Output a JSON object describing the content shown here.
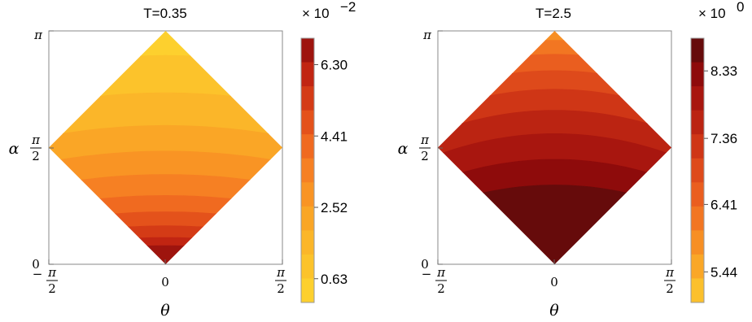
{
  "chart_data": [
    {
      "type": "contour",
      "title": "T=0.35",
      "xlabel": "θ",
      "ylabel": "α",
      "x_ticks": [
        "−π/2",
        "0",
        "π/2"
      ],
      "y_ticks": [
        "0",
        "π/2",
        "π"
      ],
      "xlim": [
        "-pi/2",
        "pi/2"
      ],
      "ylim": [
        "0",
        "pi"
      ],
      "colorbar": {
        "multiplier": "× 10",
        "exponent": "−2",
        "tick_labels": [
          "0.63",
          "2.52",
          "4.41",
          "6.30"
        ],
        "tick_values": [
          0.63,
          2.52,
          4.41,
          6.3
        ],
        "range": [
          0,
          7.0
        ],
        "levels": 11
      },
      "band_colors": [
        "#fdd02e",
        "#fcc32b",
        "#fbb629",
        "#faa626",
        "#f99424",
        "#f68023",
        "#f06a20",
        "#e4521b",
        "#d43b16",
        "#c12512",
        "#9e140e"
      ],
      "band_boundaries_alpha_frac": [
        0.85,
        0.69,
        0.55,
        0.44,
        0.34,
        0.25,
        0.18,
        0.12,
        0.07,
        0.035
      ],
      "band_curvature": 0.045
    },
    {
      "type": "contour",
      "title": "T=2.5",
      "xlabel": "θ",
      "ylabel": "α",
      "x_ticks": [
        "−π/2",
        "0",
        "π/2"
      ],
      "y_ticks": [
        "0",
        "π/2",
        "π"
      ],
      "xlim": [
        "-pi/2",
        "pi/2"
      ],
      "ylim": [
        "0",
        "pi"
      ],
      "colorbar": {
        "multiplier": "× 10",
        "exponent": "0",
        "tick_labels": [
          "5.44",
          "6.41",
          "7.36",
          "8.33"
        ],
        "tick_values": [
          5.44,
          6.41,
          7.36,
          8.33
        ],
        "range": [
          5.0,
          8.8
        ],
        "levels": 11
      },
      "band_colors": [
        "#fbc02c",
        "#faa727",
        "#f78f24",
        "#f27622",
        "#ea5e1f",
        "#de4a1b",
        "#cf3616",
        "#bb2412",
        "#a8160f",
        "#8e0b0b",
        "#660b0b"
      ],
      "band_boundaries_alpha_frac": [
        0.96,
        0.92,
        0.87,
        0.81,
        0.74,
        0.66,
        0.57,
        0.47,
        0.36,
        0.25
      ],
      "band_curvature": 0.09
    }
  ]
}
